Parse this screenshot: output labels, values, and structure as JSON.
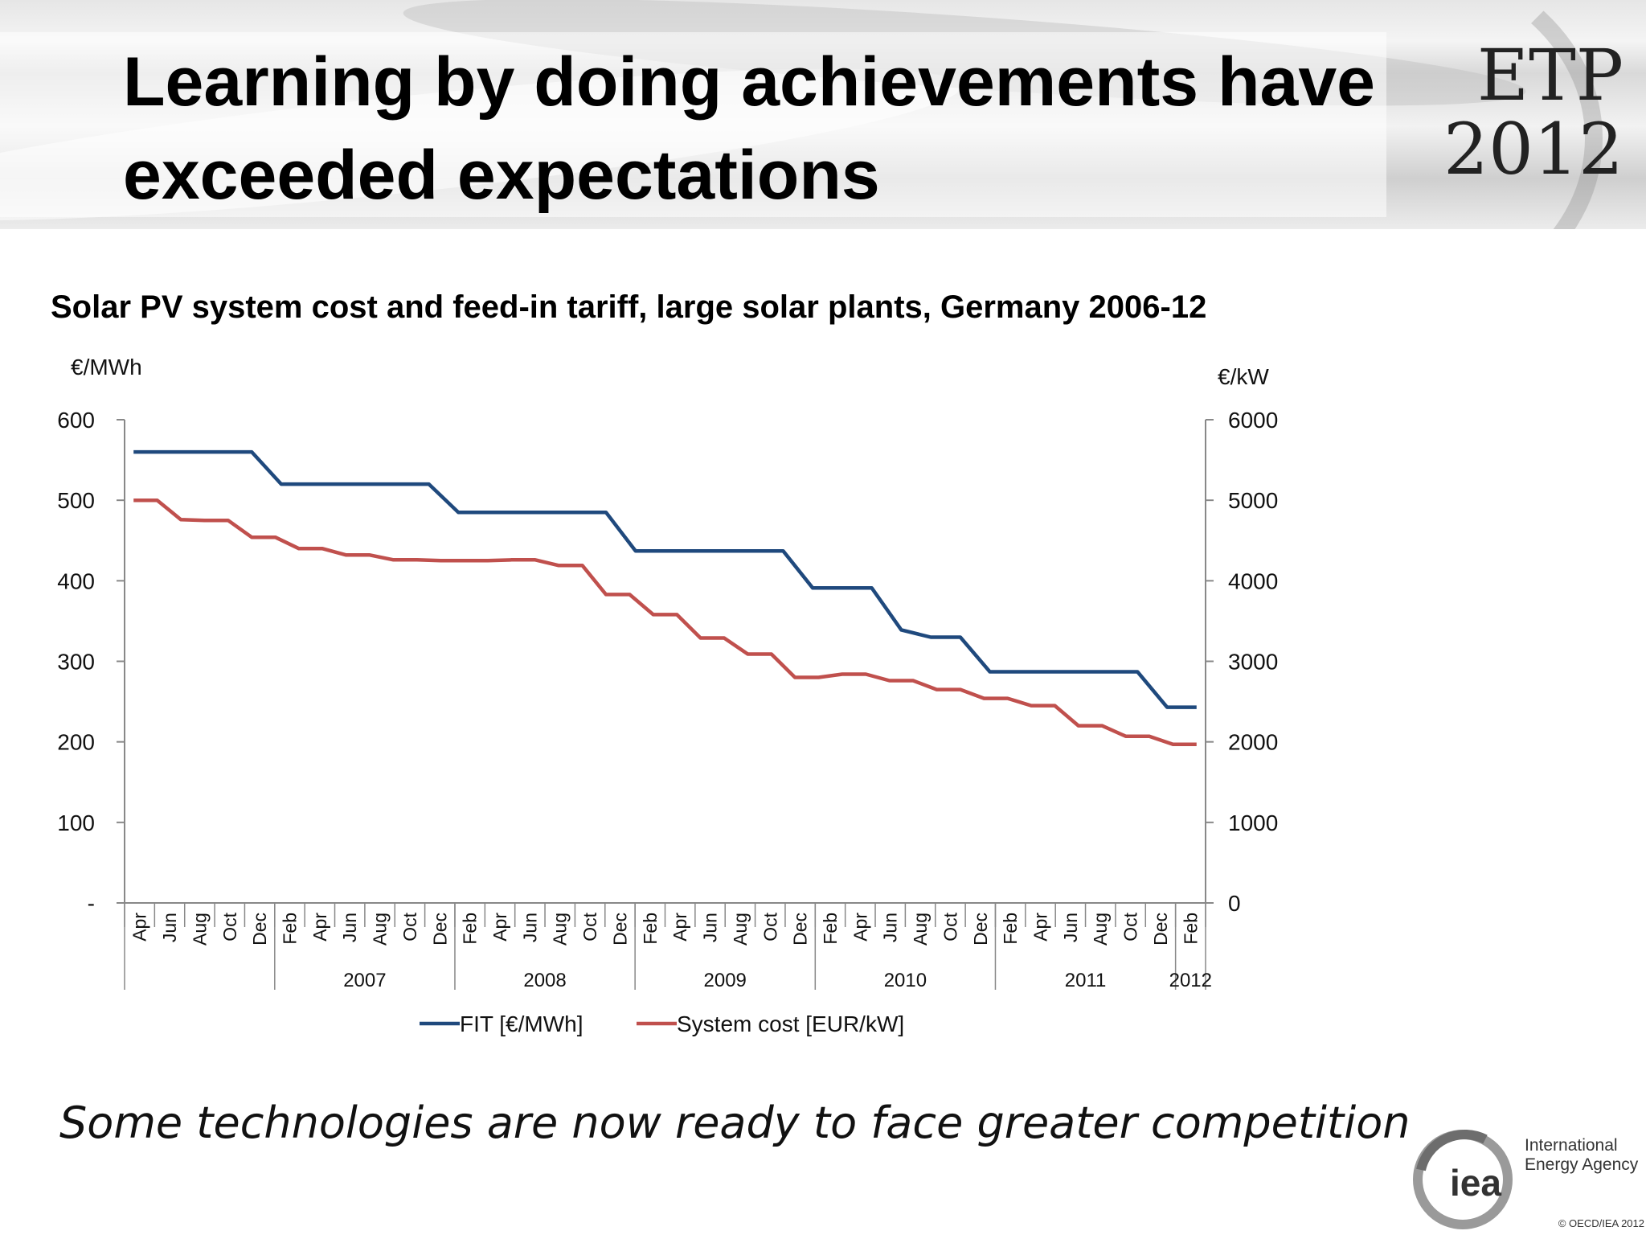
{
  "header": {
    "title": "Learning by doing achievements have exceeded expectations",
    "logo_line1": "ETP",
    "logo_line2": "2012"
  },
  "footer": {
    "subtitle": "Some technologies are now ready to face greater competition",
    "org_logo": "iea",
    "org_line1": "International",
    "org_line2": "Energy Agency",
    "copyright": "© OECD/IEA 2012"
  },
  "chart_data": {
    "type": "line",
    "title": "Solar PV system cost and feed-in tariff, large solar plants, Germany 2006-12",
    "ylabel_left": "€/MWh",
    "ylabel_right": "€/kW",
    "ylim_left": [
      0,
      600
    ],
    "ylim_right": [
      0,
      6000
    ],
    "yticks_left": [
      "-",
      "100",
      "200",
      "300",
      "400",
      "500",
      "600"
    ],
    "yticks_right": [
      "0",
      "1000",
      "2000",
      "3000",
      "4000",
      "5000",
      "6000"
    ],
    "grid": false,
    "legend_position": "bottom",
    "x_month_labels": [
      "Apr",
      "Jun",
      "Aug",
      "Oct",
      "Dec",
      "Feb",
      "Apr",
      "Jun",
      "Aug",
      "Oct",
      "Dec",
      "Feb",
      "Apr",
      "Jun",
      "Aug",
      "Oct",
      "Dec",
      "Feb",
      "Apr",
      "Jun",
      "Aug",
      "Oct",
      "Dec",
      "Feb",
      "Apr",
      "Jun",
      "Aug",
      "Oct",
      "Dec",
      "Feb",
      "Apr",
      "Jun",
      "Aug",
      "Oct",
      "Dec",
      "Feb"
    ],
    "x_year_groups": [
      {
        "label": "",
        "months": 5
      },
      {
        "label": "2007",
        "months": 6
      },
      {
        "label": "2008",
        "months": 6
      },
      {
        "label": "2009",
        "months": 6
      },
      {
        "label": "2010",
        "months": 6
      },
      {
        "label": "2011",
        "months": 6
      },
      {
        "label": "2012",
        "months": 1
      }
    ],
    "series": [
      {
        "name": "FIT [€/MWh]",
        "color": "#1f497d",
        "axis": "left",
        "values": [
          560,
          560,
          560,
          560,
          560,
          520,
          520,
          520,
          520,
          520,
          520,
          485,
          485,
          485,
          485,
          485,
          485,
          437,
          437,
          437,
          437,
          437,
          437,
          391,
          391,
          391,
          339,
          330,
          330,
          287,
          287,
          287,
          287,
          287,
          287,
          243,
          243
        ]
      },
      {
        "name": "System cost [EUR/kW]",
        "color": "#c0504d",
        "axis": "right",
        "values": [
          5000,
          5000,
          4760,
          4750,
          4750,
          4540,
          4540,
          4400,
          4400,
          4320,
          4320,
          4260,
          4260,
          4250,
          4250,
          4250,
          4260,
          4260,
          4190,
          4190,
          3830,
          3830,
          3580,
          3580,
          3290,
          3290,
          3090,
          3090,
          2800,
          2800,
          2840,
          2840,
          2760,
          2760,
          2650,
          2650,
          2540,
          2540,
          2450,
          2450,
          2200,
          2200,
          2070,
          2070,
          1970,
          1970
        ]
      }
    ]
  }
}
